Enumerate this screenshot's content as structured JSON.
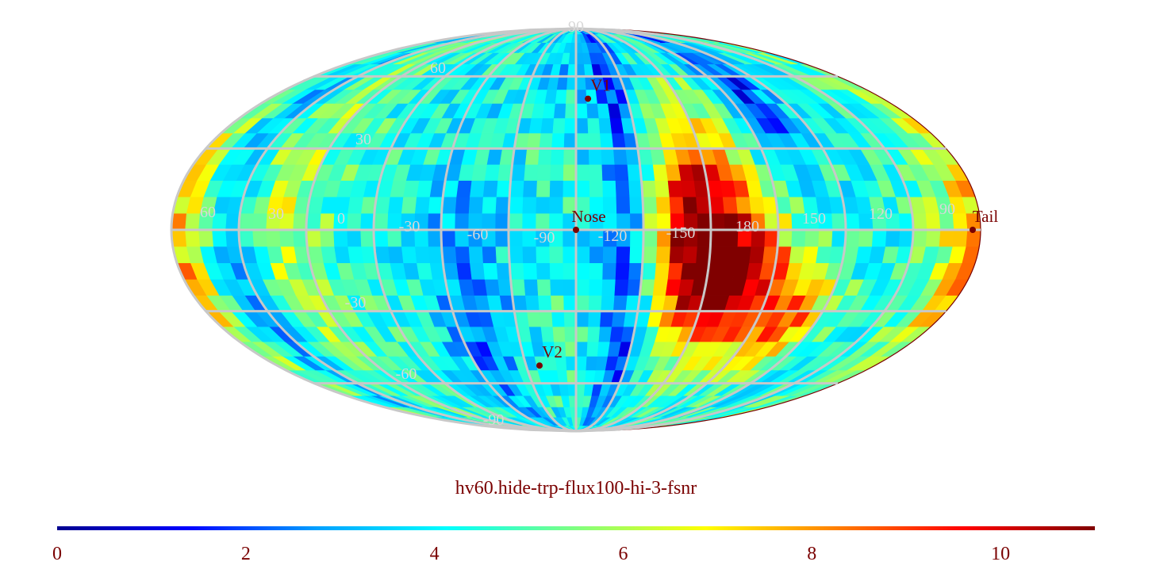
{
  "map": {
    "title": "hv60.hide-trp-flux100-hi-3-fsnr",
    "projection": "mollweide",
    "grid_color": "#c8c8c8",
    "label_color": "#7a0000",
    "grid_label_color": "#d8d8d8",
    "latitude_labels": [
      "90",
      "60",
      "30",
      "-30",
      "-60",
      "-90"
    ],
    "longitude_labels": [
      "60",
      "30",
      "0",
      "-30",
      "-60",
      "-90",
      "-120",
      "-150",
      "180",
      "150",
      "120",
      "90"
    ],
    "markers": [
      {
        "label": "V1",
        "lon": -97,
        "lat": 50
      },
      {
        "label": "Nose",
        "lon": -90,
        "lat": 0
      },
      {
        "label": "Tail",
        "lon": 90,
        "lat": 0
      },
      {
        "label": "V2",
        "lon": -68,
        "lat": -52
      }
    ]
  },
  "colorbar": {
    "ticks": [
      "0",
      "2",
      "4",
      "6",
      "8",
      "10"
    ],
    "min": 0,
    "max": 11,
    "colors": [
      "#00008f",
      "#0000ff",
      "#00a0ff",
      "#00ffff",
      "#80ff80",
      "#ffff00",
      "#ff8000",
      "#ff0000",
      "#800000"
    ]
  }
}
